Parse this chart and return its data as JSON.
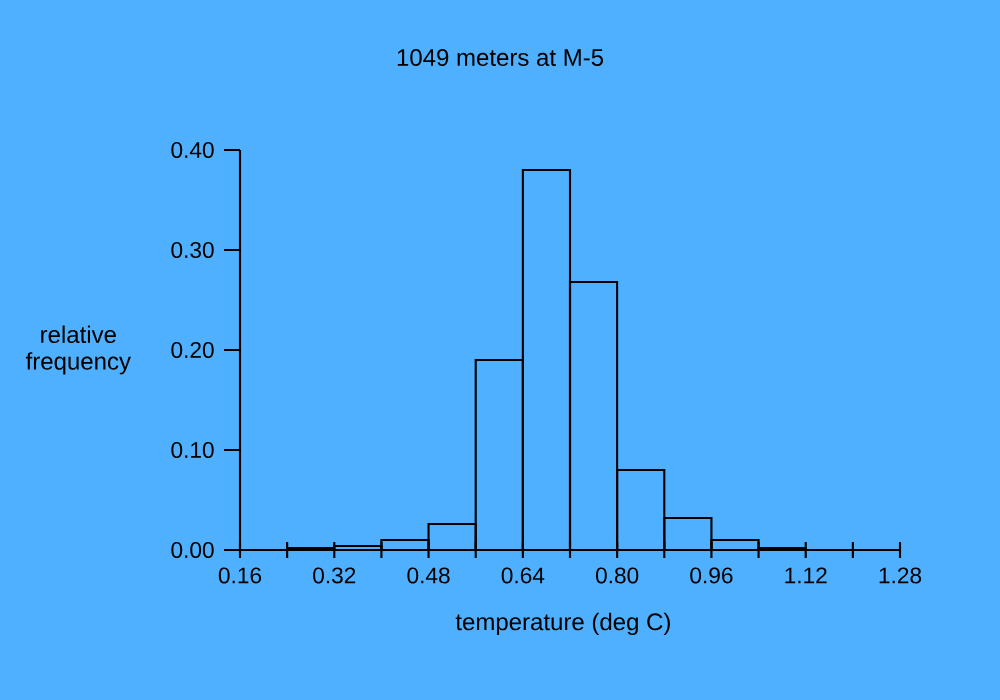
{
  "chart_data": {
    "type": "histogram",
    "title": "1049 meters at M-5",
    "xlabel": "temperature (deg C)",
    "ylabel": "relative frequency",
    "bins": [
      0.24,
      0.32,
      0.4,
      0.48,
      0.56,
      0.64,
      0.72,
      0.8,
      0.88,
      0.96,
      1.04,
      1.12
    ],
    "values": [
      0.002,
      0.004,
      0.01,
      0.026,
      0.19,
      0.38,
      0.268,
      0.08,
      0.032,
      0.01,
      0.002
    ],
    "color": "#000000",
    "xlim": [
      0.16,
      1.28
    ],
    "ylim": [
      0,
      0.4
    ],
    "xticks": [
      {
        "value": 0.16,
        "label": "0.16"
      },
      {
        "value": 0.24,
        "label": null
      },
      {
        "value": 0.32,
        "label": "0.32"
      },
      {
        "value": 0.4,
        "label": null
      },
      {
        "value": 0.48,
        "label": "0.48"
      },
      {
        "value": 0.56,
        "label": null
      },
      {
        "value": 0.64,
        "label": "0.64"
      },
      {
        "value": 0.72,
        "label": null
      },
      {
        "value": 0.8,
        "label": "0.80"
      },
      {
        "value": 0.88,
        "label": null
      },
      {
        "value": 0.96,
        "label": "0.96"
      },
      {
        "value": 1.04,
        "label": null
      },
      {
        "value": 1.12,
        "label": "1.12"
      },
      {
        "value": 1.2,
        "label": null
      },
      {
        "value": 1.28,
        "label": "1.28"
      }
    ],
    "yticks": [
      {
        "value": 0,
        "label": "0.00"
      },
      {
        "value": 0.1,
        "label": "0.10"
      },
      {
        "value": 0.2,
        "label": "0.20"
      },
      {
        "value": 0.3,
        "label": "0.30"
      },
      {
        "value": 0.4,
        "label": "0.40"
      }
    ],
    "grid": false
  }
}
